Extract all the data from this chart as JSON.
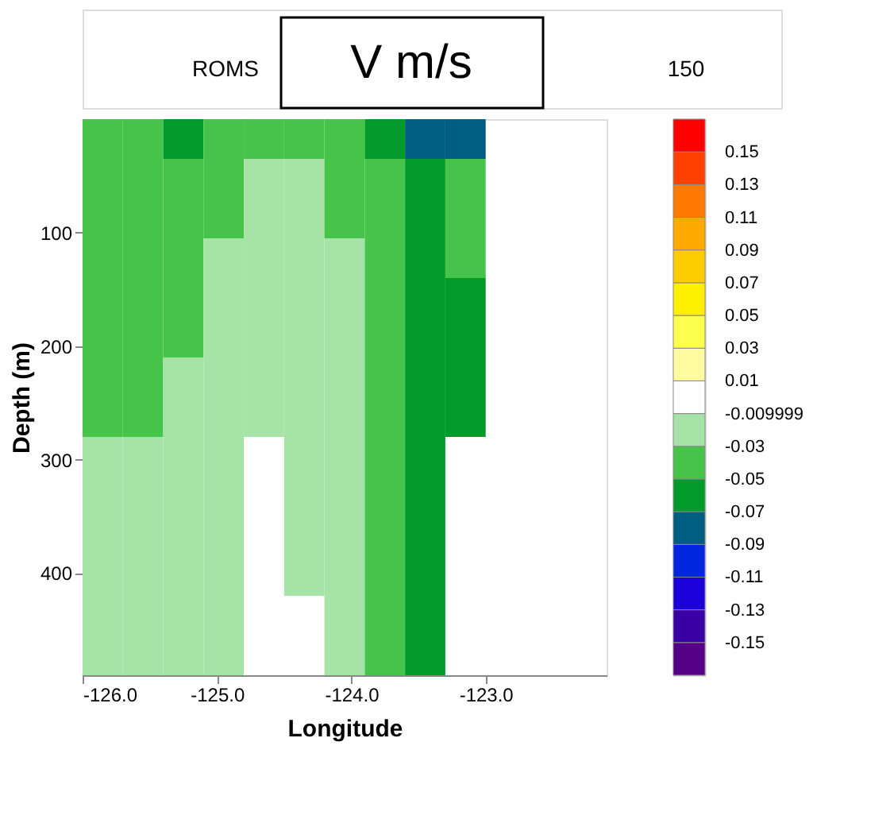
{
  "chart_data": {
    "type": "heatmap",
    "title": "V m/s",
    "annotations": [
      "ROMS",
      "150"
    ],
    "xlabel": "Longitude",
    "ylabel": "Depth (m)",
    "x": [
      -125.85,
      -125.55,
      -125.25,
      -124.95,
      -124.65,
      -124.35,
      -124.05,
      -123.75,
      -123.45,
      -123.15,
      -122.85,
      -122.55,
      -122.25
    ],
    "y": [
      17.5,
      52.5,
      87.5,
      122.5,
      157.5,
      192.5,
      227.5,
      262.5,
      297.5,
      332.5,
      367.5,
      402.5,
      437.5,
      472.5
    ],
    "cells": [
      [
        -0.04,
        -0.04,
        -0.06,
        -0.04,
        -0.04,
        -0.04,
        -0.04,
        -0.06,
        -0.08,
        -0.08,
        null,
        null,
        null
      ],
      [
        -0.04,
        -0.04,
        -0.04,
        -0.04,
        -0.02,
        -0.02,
        -0.04,
        -0.04,
        -0.06,
        -0.04,
        null,
        null,
        null
      ],
      [
        -0.04,
        -0.04,
        -0.04,
        -0.04,
        -0.02,
        -0.02,
        -0.04,
        -0.04,
        -0.06,
        -0.04,
        null,
        null,
        null
      ],
      [
        -0.04,
        -0.04,
        -0.04,
        -0.02,
        -0.02,
        -0.02,
        -0.02,
        -0.04,
        -0.06,
        -0.04,
        null,
        null,
        null
      ],
      [
        -0.04,
        -0.04,
        -0.04,
        -0.02,
        -0.02,
        -0.02,
        -0.02,
        -0.04,
        -0.06,
        -0.06,
        null,
        null,
        null
      ],
      [
        -0.04,
        -0.04,
        -0.04,
        -0.02,
        -0.02,
        -0.02,
        -0.02,
        -0.04,
        -0.06,
        -0.06,
        null,
        null,
        null
      ],
      [
        -0.04,
        -0.04,
        -0.02,
        -0.02,
        -0.02,
        -0.02,
        -0.02,
        -0.04,
        -0.06,
        -0.06,
        null,
        null,
        null
      ],
      [
        -0.04,
        -0.04,
        -0.02,
        -0.02,
        -0.02,
        -0.02,
        -0.02,
        -0.04,
        -0.06,
        -0.06,
        null,
        null,
        null
      ],
      [
        -0.02,
        -0.02,
        -0.02,
        -0.02,
        0,
        -0.02,
        -0.02,
        -0.04,
        -0.06,
        null,
        null,
        null,
        null
      ],
      [
        -0.02,
        -0.02,
        -0.02,
        -0.02,
        0,
        -0.02,
        -0.02,
        -0.04,
        -0.06,
        null,
        null,
        null,
        null
      ],
      [
        -0.02,
        -0.02,
        -0.02,
        -0.02,
        0,
        -0.02,
        -0.02,
        -0.04,
        -0.06,
        null,
        null,
        null,
        null
      ],
      [
        -0.02,
        -0.02,
        -0.02,
        -0.02,
        0,
        -0.02,
        -0.02,
        -0.04,
        -0.06,
        null,
        null,
        null,
        null
      ],
      [
        -0.02,
        -0.02,
        -0.02,
        -0.02,
        0,
        0,
        -0.02,
        -0.04,
        -0.06,
        null,
        null,
        null,
        null
      ],
      [
        -0.02,
        -0.02,
        -0.02,
        -0.02,
        0,
        0,
        -0.02,
        -0.04,
        -0.06,
        null,
        null,
        null,
        null
      ]
    ],
    "xlim": [
      -126.0,
      -122.1
    ],
    "xticks": [
      {
        "value": -126,
        "label": "-126.0"
      },
      {
        "value": -125,
        "label": "-125.0"
      },
      {
        "value": -124,
        "label": "-124.0"
      },
      {
        "value": -123,
        "label": "-123.0"
      }
    ],
    "ylim": [
      490,
      0
    ],
    "yticks": [
      100,
      200,
      300,
      400
    ],
    "clim": [
      -0.17,
      0.17
    ],
    "cticks": [
      -0.15,
      -0.13,
      -0.11,
      -0.09,
      -0.07,
      -0.05,
      -0.03,
      -0.009999,
      0.01,
      0.03,
      0.05,
      0.07,
      0.09,
      0.11,
      0.13,
      0.15
    ],
    "colors": [
      "#560087",
      "#3a00a6",
      "#1c00dc",
      "#0026e0",
      "#005e80",
      "#039a2c",
      "#46c44a",
      "#a6e3a6",
      "#ffffff",
      "#fffaa0",
      "#ffff50",
      "#fff000",
      "#ffcc00",
      "#ffaa00",
      "#ff7a00",
      "#ff4000",
      "#ff0000"
    ],
    "grid": false
  }
}
